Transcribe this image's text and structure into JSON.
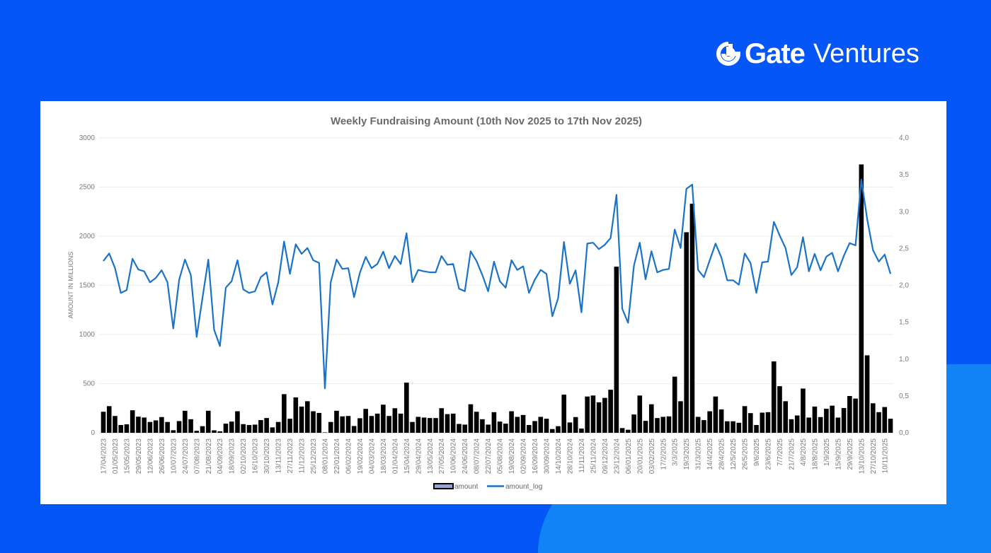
{
  "brand": {
    "name_bold": "Gate",
    "name_light": "Ventures",
    "background": "#0456f7"
  },
  "chart_data": {
    "type": "bar",
    "title": "Weekly Fundraising Amount (10th Nov 2025 to 17th Nov 2025)",
    "ylabel": "AMOUNT IN MILLIONS",
    "ylim": [
      0,
      3000
    ],
    "y_ticks": [
      "0",
      "500",
      "1000",
      "1500",
      "2000",
      "2500",
      "3000"
    ],
    "y2lim": [
      0,
      4.0
    ],
    "y2_ticks": [
      "0,0",
      "0,5",
      "1,0",
      "1,5",
      "2,0",
      "2,5",
      "3,0",
      "3,5",
      "4,0"
    ],
    "grid": true,
    "legend_position": "bottom",
    "x_tick_labels": [
      "17/04/2023",
      "01/05/2023",
      "15/05/2023",
      "29/05/2023",
      "12/06/2023",
      "26/06/2023",
      "10/07/2023",
      "24/07/2023",
      "07/08/2023",
      "21/08/2023",
      "04/09/2023",
      "18/09/2023",
      "02/10/2023",
      "16/10/2023",
      "30/10/2023",
      "13/11/2023",
      "27/11/2023",
      "11/12/2023",
      "25/12/2023",
      "08/01/2024",
      "22/01/2024",
      "06/02/2024",
      "19/02/2024",
      "04/03/2024",
      "18/03/2024",
      "01/04/2024",
      "15/04/2024",
      "29/04/2024",
      "13/05/2024",
      "27/05/2024",
      "10/06/2024",
      "24/06/2024",
      "08/07/2024",
      "22/07/2024",
      "05/08/2024",
      "19/08/2024",
      "02/09/2024",
      "16/09/2024",
      "30/09/2024",
      "14/10/2024",
      "28/10/2024",
      "11/11/2024",
      "25/11/2024",
      "09/12/2024",
      "23/12/2024",
      "06/01/2025",
      "20/01/2025",
      "03/02/2025",
      "17/2/2025",
      "3/3/2025",
      "19/3/2025",
      "31/3/2025",
      "14/4/2025",
      "28/4/2025",
      "12/5/2025",
      "26/5/2025",
      "9/6/2025",
      "23/6/2025",
      "7/7/2025",
      "21/7/2025",
      "4/8/2025",
      "18/8/2025",
      "1/9/2025",
      "15/9/2025",
      "29/9/2025",
      "13/10/2025",
      "27/10/2025",
      "10/11/2025"
    ],
    "series": [
      {
        "name": "amount",
        "axis": "left",
        "kind": "bar",
        "color": "#000000",
        "values": [
          214,
          271,
          171,
          79,
          86,
          229,
          164,
          155,
          110,
          126,
          160,
          110,
          26,
          119,
          224,
          138,
          20,
          67,
          224,
          25,
          15,
          93,
          114,
          219,
          88,
          79,
          83,
          129,
          150,
          55,
          110,
          393,
          143,
          360,
          267,
          321,
          219,
          202,
          4,
          110,
          224,
          167,
          171,
          69,
          148,
          243,
          171,
          195,
          286,
          171,
          250,
          195,
          510,
          110,
          162,
          155,
          150,
          150,
          250,
          190,
          195,
          90,
          83,
          290,
          214,
          138,
          83,
          210,
          114,
          93,
          219,
          162,
          181,
          79,
          119,
          162,
          143,
          38,
          67,
          388,
          105,
          160,
          43,
          369,
          379,
          310,
          355,
          438,
          1690,
          48,
          31,
          186,
          379,
          121,
          290,
          150,
          162,
          167,
          571,
          321,
          2040,
          2330,
          162,
          129,
          219,
          369,
          238,
          117,
          117,
          102,
          271,
          200,
          79,
          205,
          210,
          726,
          474,
          321,
          138,
          176,
          450,
          155,
          267,
          160,
          245,
          276,
          155,
          252,
          374,
          348,
          2730,
          788,
          300,
          210,
          262,
          143
        ]
      },
      {
        "name": "amount_log",
        "axis": "right",
        "kind": "line",
        "color": "#1a73c9",
        "transform": "log10(amount)"
      }
    ]
  }
}
